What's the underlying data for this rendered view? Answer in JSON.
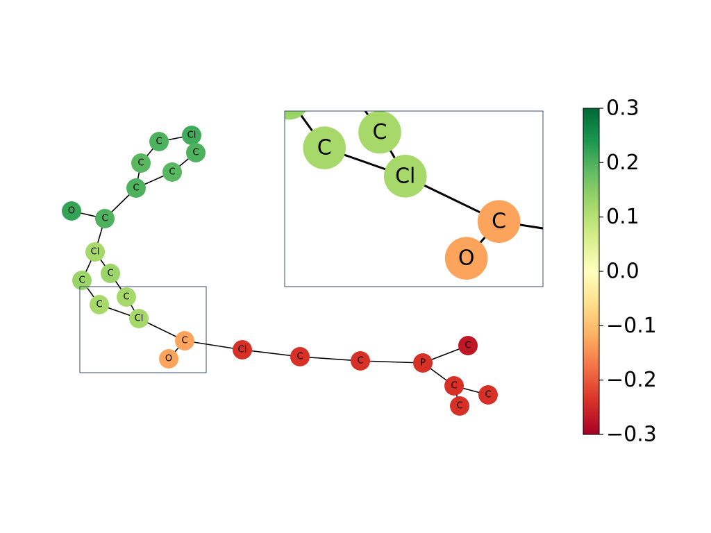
{
  "graph": {
    "nodes": [
      {
        "id": "n1",
        "label": "O",
        "value": 0.22
      },
      {
        "id": "n2",
        "label": "C",
        "value": 0.2
      },
      {
        "id": "n3",
        "label": "C",
        "value": 0.2
      },
      {
        "id": "n4",
        "label": "C",
        "value": 0.19
      },
      {
        "id": "n5",
        "label": "C",
        "value": 0.2
      },
      {
        "id": "n6",
        "label": "Cl",
        "value": 0.21
      },
      {
        "id": "n7",
        "label": "C",
        "value": 0.2
      },
      {
        "id": "n8",
        "label": "C",
        "value": 0.19
      },
      {
        "id": "n9",
        "label": "Cl",
        "value": 0.12
      },
      {
        "id": "n10",
        "label": "C",
        "value": 0.13
      },
      {
        "id": "n11",
        "label": "C",
        "value": 0.13
      },
      {
        "id": "n12",
        "label": "C",
        "value": 0.12
      },
      {
        "id": "n13",
        "label": "C",
        "value": 0.12
      },
      {
        "id": "n14",
        "label": "Cl",
        "value": 0.12
      },
      {
        "id": "n15",
        "label": "C",
        "value": -0.13
      },
      {
        "id": "n16",
        "label": "O",
        "value": -0.13
      },
      {
        "id": "n17",
        "label": "Cl",
        "value": -0.24
      },
      {
        "id": "n18",
        "label": "C",
        "value": -0.24
      },
      {
        "id": "n19",
        "label": "C",
        "value": -0.24
      },
      {
        "id": "n20",
        "label": "P",
        "value": -0.24
      },
      {
        "id": "n21",
        "label": "C",
        "value": -0.27
      },
      {
        "id": "n22",
        "label": "C",
        "value": -0.24
      },
      {
        "id": "n23",
        "label": "C",
        "value": -0.24
      },
      {
        "id": "n24",
        "label": "C",
        "value": -0.24
      }
    ],
    "edges": [
      [
        "n1",
        "n2"
      ],
      [
        "n2",
        "n3"
      ],
      [
        "n3",
        "n4"
      ],
      [
        "n4",
        "n5"
      ],
      [
        "n5",
        "n6"
      ],
      [
        "n6",
        "n7"
      ],
      [
        "n7",
        "n8"
      ],
      [
        "n8",
        "n3"
      ],
      [
        "n2",
        "n9"
      ],
      [
        "n9",
        "n10"
      ],
      [
        "n9",
        "n11"
      ],
      [
        "n10",
        "n12"
      ],
      [
        "n11",
        "n13"
      ],
      [
        "n12",
        "n14"
      ],
      [
        "n13",
        "n14"
      ],
      [
        "n14",
        "n15"
      ],
      [
        "n15",
        "n16"
      ],
      [
        "n15",
        "n17"
      ],
      [
        "n17",
        "n18"
      ],
      [
        "n18",
        "n19"
      ],
      [
        "n19",
        "n20"
      ],
      [
        "n20",
        "n21"
      ],
      [
        "n20",
        "n22"
      ],
      [
        "n22",
        "n23"
      ],
      [
        "n22",
        "n24"
      ]
    ]
  },
  "colorbar": {
    "min": -0.3,
    "max": 0.3,
    "ticks": [
      "0.3",
      "0.2",
      "0.1",
      "0.0",
      "−0.1",
      "−0.2",
      "−0.3"
    ],
    "stops": [
      "#a50026",
      "#d73027",
      "#f46d43",
      "#fdae61",
      "#fee08b",
      "#ffffbf",
      "#d9ef8b",
      "#a6d96a",
      "#66bd63",
      "#1a9850",
      "#006837"
    ]
  }
}
